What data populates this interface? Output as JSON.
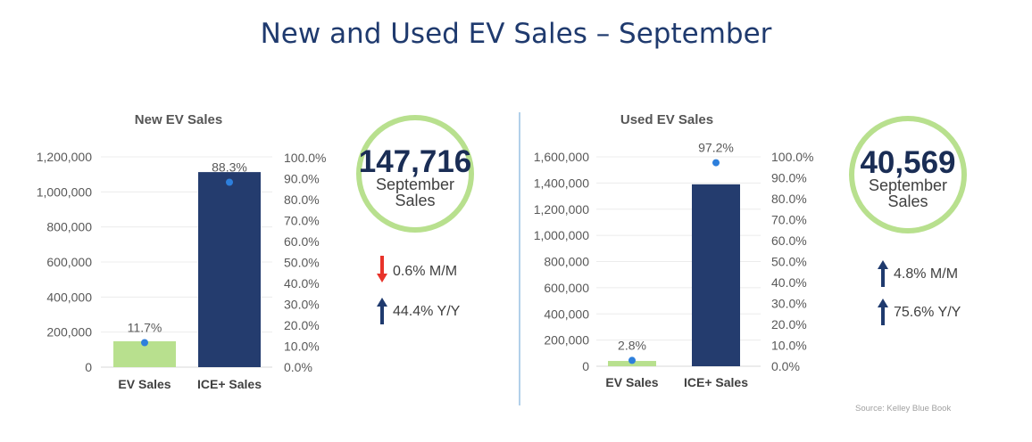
{
  "title": "New and Used EV Sales – September",
  "source": "Source: Kelley Blue Book",
  "colors": {
    "ev": "#b8e08e",
    "ice": "#243c6e",
    "dot": "#2d7fdc",
    "ring": "#b8e08e",
    "down": "#e8332a",
    "up": "#1f3a6e"
  },
  "chart_data": [
    {
      "type": "bar",
      "title": "New EV Sales",
      "categories": [
        "EV Sales",
        "ICE+ Sales"
      ],
      "values": [
        147716,
        1113000
      ],
      "share_percent": [
        11.7,
        88.3
      ],
      "share_labels": [
        "11.7%",
        "88.3%"
      ],
      "ylim": [
        0,
        1200000
      ],
      "y_ticks": [
        "0",
        "200,000",
        "400,000",
        "600,000",
        "800,000",
        "1,000,000",
        "1,200,000"
      ],
      "y2lim": [
        0,
        100
      ],
      "y2_ticks": [
        "0.0%",
        "10.0%",
        "20.0%",
        "30.0%",
        "40.0%",
        "50.0%",
        "60.0%",
        "70.0%",
        "80.0%",
        "90.0%",
        "100.0%"
      ],
      "grid": true
    },
    {
      "type": "bar",
      "title": "Used EV Sales",
      "categories": [
        "EV Sales",
        "ICE+ Sales"
      ],
      "values": [
        40569,
        1390000
      ],
      "share_percent": [
        2.8,
        97.2
      ],
      "share_labels": [
        "2.8%",
        "97.2%"
      ],
      "ylim": [
        0,
        1600000
      ],
      "y_ticks": [
        "0",
        "200,000",
        "400,000",
        "600,000",
        "800,000",
        "1,000,000",
        "1,200,000",
        "1,400,000",
        "1,600,000"
      ],
      "y2lim": [
        0,
        100
      ],
      "y2_ticks": [
        "0.0%",
        "10.0%",
        "20.0%",
        "30.0%",
        "40.0%",
        "50.0%",
        "60.0%",
        "70.0%",
        "80.0%",
        "90.0%",
        "100.0%"
      ],
      "grid": true
    }
  ],
  "kpis": [
    {
      "value": "147,716",
      "line1": "September",
      "line2": "Sales",
      "changes": [
        {
          "dir": "down",
          "text": "0.6% M/M"
        },
        {
          "dir": "up",
          "text": "44.4% Y/Y"
        }
      ]
    },
    {
      "value": "40,569",
      "line1": "September",
      "line2": "Sales",
      "changes": [
        {
          "dir": "up",
          "text": "4.8% M/M"
        },
        {
          "dir": "up",
          "text": "75.6% Y/Y"
        }
      ]
    }
  ]
}
